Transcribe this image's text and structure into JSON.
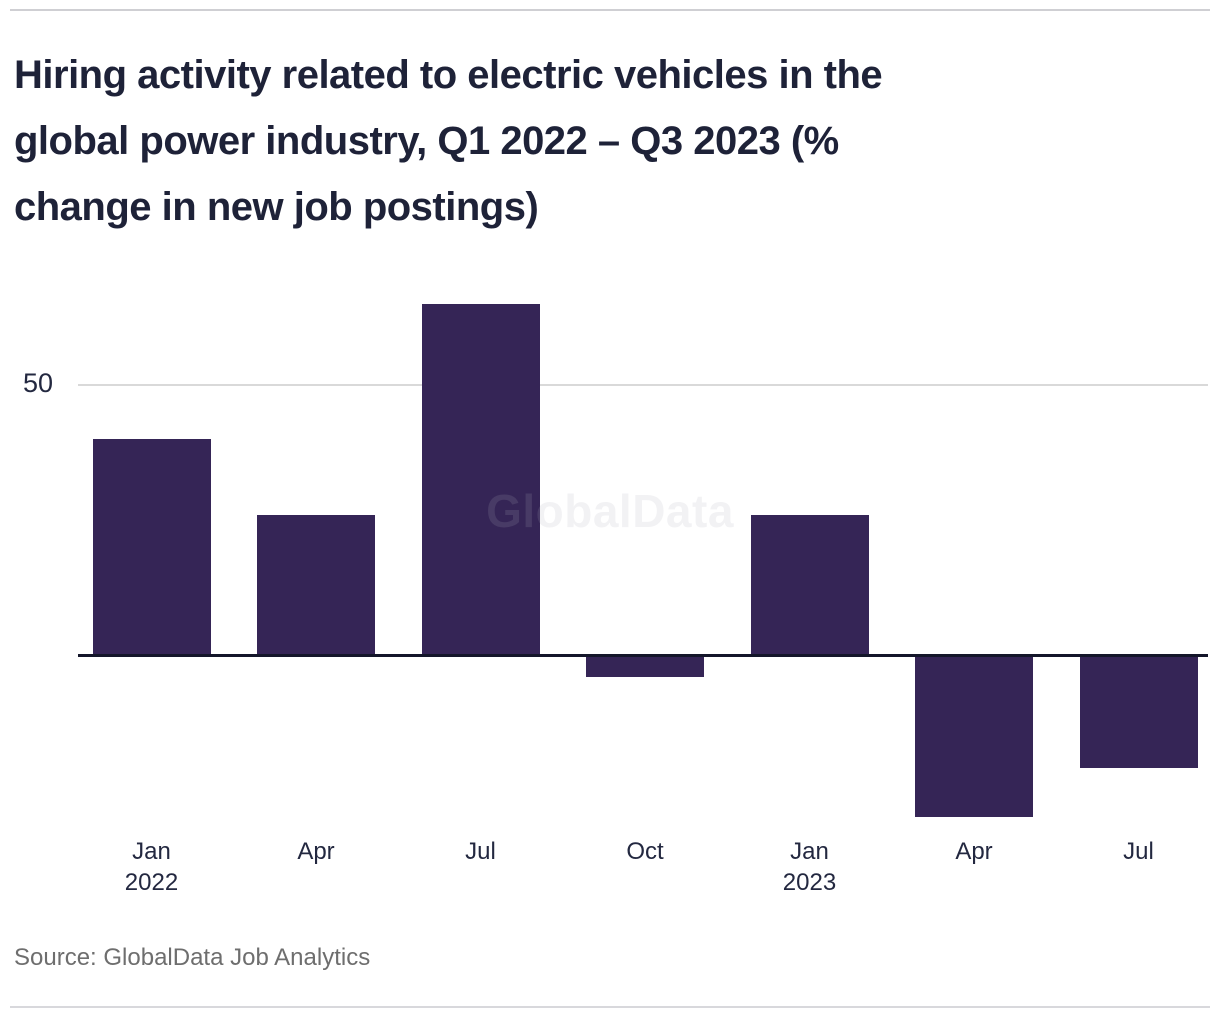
{
  "header": {
    "title_lines": [
      "Hiring activity related to electric vehicles in the",
      "global power industry, Q1 2022 – Q3 2023 (%",
      "change in new job postings)"
    ]
  },
  "chart_data": {
    "type": "bar",
    "title": "Hiring activity related to electric vehicles in the global power industry, Q1 2022 – Q3 2023 (% change in new job postings)",
    "categories": [
      "Jan 2022",
      "Apr",
      "Jul",
      "Oct",
      "Jan 2023",
      "Apr",
      "Jul"
    ],
    "tick_labels": [
      [
        "Jan",
        "2022"
      ],
      [
        "Apr"
      ],
      [
        "Jul"
      ],
      [
        "Oct"
      ],
      [
        "Jan",
        "2023"
      ],
      [
        "Apr"
      ],
      [
        "Jul"
      ]
    ],
    "values": [
      40,
      26,
      65,
      -4,
      26,
      -30,
      -21
    ],
    "ylabel": "% change in new job postings",
    "xlabel": "",
    "ylim": [
      -35,
      70
    ],
    "y_gridlines": [
      50
    ],
    "y_tick_labels": [
      "50"
    ],
    "grid": "single horizontal gridline at 50, dark zero baseline",
    "legend": "none",
    "bar_color": "#352556"
  },
  "watermark": {
    "text": "GlobalData"
  },
  "footer": {
    "source": "Source: GlobalData Job Analytics"
  },
  "colors": {
    "bar": "#352556",
    "zero_axis": "#14162a",
    "gridline": "#d9d9d9",
    "title_text": "#1e2238",
    "tick_text": "#232840",
    "source_text": "#6e6e6e",
    "rule": "#d2d2d6"
  }
}
